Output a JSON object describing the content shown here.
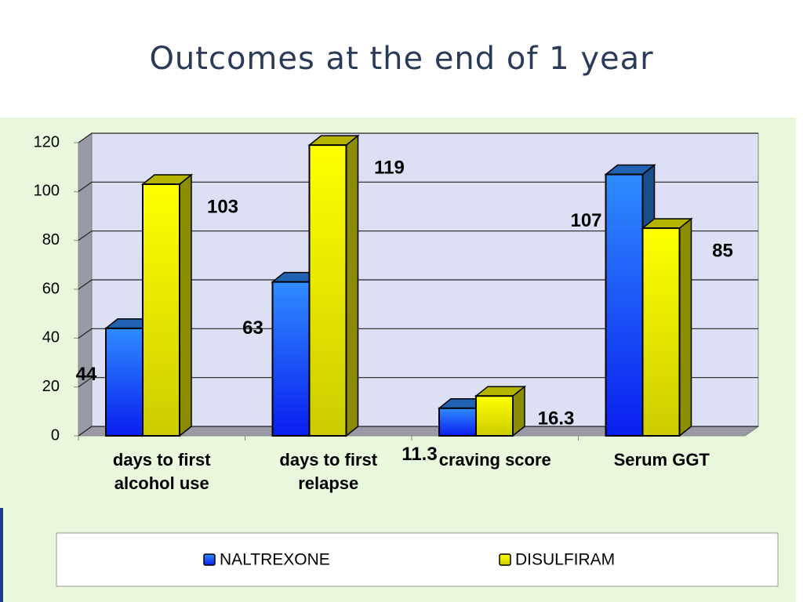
{
  "chart_data": {
    "type": "bar3d",
    "title": "Outcomes at the end of 1 year",
    "categories": [
      "days to first alcohol use",
      "days to first relapse",
      "craving score",
      "Serum GGT"
    ],
    "series": [
      {
        "name": "NALTREXONE",
        "color": "#2f8cff",
        "values": [
          44,
          63,
          11.3,
          107
        ]
      },
      {
        "name": "DISULFIRAM",
        "color": "#ffff00",
        "values": [
          103,
          119,
          16.3,
          85
        ]
      }
    ],
    "ylim": [
      0,
      120
    ],
    "yticks": [
      0,
      20,
      40,
      60,
      80,
      100,
      120
    ],
    "grid": true,
    "legend": "bottom"
  }
}
